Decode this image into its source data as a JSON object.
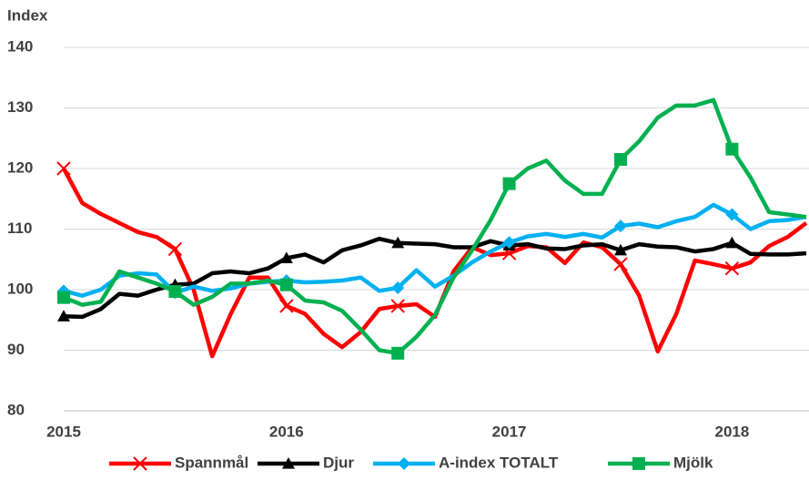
{
  "chart_data": {
    "type": "line",
    "y_label": "Index",
    "categories": [
      "2015",
      null,
      null,
      null,
      null,
      null,
      null,
      null,
      null,
      null,
      null,
      null,
      "2016",
      null,
      null,
      null,
      null,
      null,
      null,
      null,
      null,
      null,
      null,
      null,
      "2017",
      null,
      null,
      null,
      null,
      null,
      null,
      null,
      null,
      null,
      null,
      null,
      "2018",
      null,
      null,
      null,
      null
    ],
    "ylim": [
      80,
      140
    ],
    "yticks": [
      80,
      90,
      100,
      110,
      120,
      130,
      140
    ],
    "grid": true,
    "legend": "bottom",
    "marker_every": 6,
    "series": [
      {
        "name": "Spannmål",
        "color": "#ff0000",
        "marker": "x",
        "values": [
          120,
          114.3,
          112.5,
          111,
          109.5,
          108.7,
          106.7,
          100,
          89,
          96,
          102,
          102,
          97.3,
          96,
          92.7,
          90.5,
          93,
          96.8,
          97.3,
          97.6,
          95.5,
          103,
          107,
          105.7,
          106,
          107.2,
          107,
          104.4,
          107.8,
          107,
          104.2,
          99,
          89.8,
          96,
          104.8,
          104.2,
          103.5,
          104.5,
          107.2,
          108.7,
          111
        ]
      },
      {
        "name": "Djur",
        "color": "#000000",
        "marker": "triangle",
        "values": [
          95.6,
          95.5,
          96.8,
          99.3,
          99,
          100,
          100.8,
          101,
          102.7,
          103,
          102.7,
          103.5,
          105.2,
          105.8,
          104.5,
          106.5,
          107.3,
          108.4,
          107.7,
          107.6,
          107.5,
          107,
          107,
          108,
          107.3,
          107.5,
          106.8,
          106.7,
          107.3,
          107.5,
          106.5,
          107.5,
          107.1,
          107,
          106.3,
          106.7,
          107.7,
          105.9,
          105.8,
          105.8,
          106
        ]
      },
      {
        "name": "A-index TOTALT",
        "color": "#00b0f0",
        "marker": "diamond",
        "values": [
          99.8,
          99,
          100,
          102.3,
          102.7,
          102.5,
          99.5,
          100.5,
          99.8,
          100.2,
          101,
          101.3,
          101.5,
          101.2,
          101.3,
          101.5,
          102,
          99.8,
          100.3,
          103.2,
          100.5,
          102.3,
          104.5,
          106.3,
          107.8,
          108.8,
          109.2,
          108.7,
          109.2,
          108.6,
          110.5,
          110.9,
          110.3,
          111.3,
          112,
          114,
          112.4,
          110,
          111.3,
          111.5,
          112
        ]
      },
      {
        "name": "Mjölk",
        "color": "#00b050",
        "marker": "square",
        "values": [
          98.7,
          97.5,
          98,
          103,
          102,
          101,
          99.7,
          97.5,
          98.8,
          101,
          101,
          101.5,
          100.8,
          98.2,
          97.9,
          96.5,
          93.4,
          90,
          89.5,
          92.2,
          95.8,
          102,
          106.5,
          111.5,
          117.5,
          120,
          121.3,
          118,
          115.8,
          115.8,
          121.5,
          124.5,
          128.4,
          130.4,
          130.4,
          131.3,
          123.2,
          118.5,
          112.8,
          112.4,
          112
        ]
      }
    ]
  }
}
